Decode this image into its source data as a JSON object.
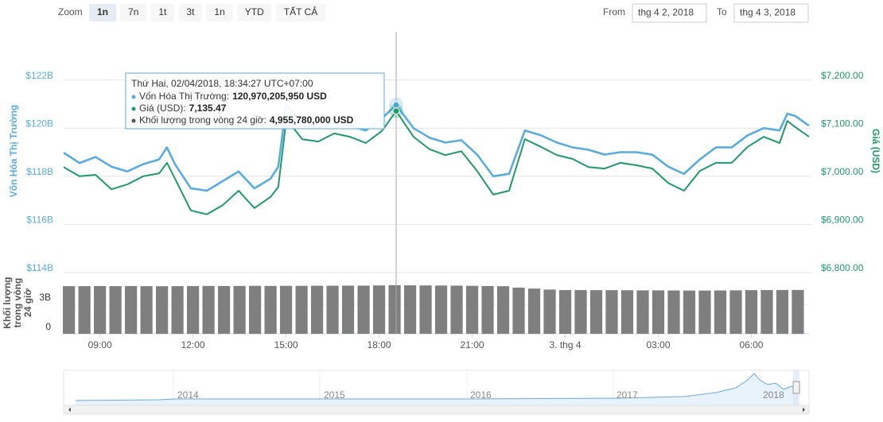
{
  "zoom": {
    "label": "Zoom",
    "buttons": [
      "1n",
      "7n",
      "1t",
      "3t",
      "1n",
      "YTD",
      "TẤT CẢ"
    ],
    "active": 0
  },
  "range": {
    "from_label": "From",
    "from": "thg 4 2, 2018",
    "to_label": "To",
    "to": "thg 4 3, 2018"
  },
  "chart_data": {
    "type": "line",
    "x": [
      7.83,
      8.34,
      8.86,
      9.37,
      9.88,
      10.39,
      10.91,
      11.16,
      11.42,
      11.93,
      12.45,
      12.96,
      13.47,
      13.98,
      14.5,
      14.75,
      15.01,
      15.52,
      16.04,
      16.55,
      17.06,
      17.57,
      18.09,
      18.55,
      19.11,
      19.63,
      20.14,
      20.65,
      21.16,
      21.68,
      22.19,
      22.7,
      23.22,
      23.73,
      24.24,
      24.75,
      25.27,
      25.78,
      26.29,
      26.81,
      27.32,
      27.83,
      28.34,
      28.86,
      29.37,
      29.88,
      30.4,
      30.91,
      31.16,
      31.42,
      31.86
    ],
    "xlim": [
      7.83,
      31.86
    ],
    "xticks": [
      {
        "value": 9,
        "label": "09:00"
      },
      {
        "value": 12,
        "label": "12:00"
      },
      {
        "value": 15,
        "label": "15:00"
      },
      {
        "value": 18,
        "label": "18:00"
      },
      {
        "value": 21,
        "label": "21:00"
      },
      {
        "value": 24,
        "label": "3. thg 4"
      },
      {
        "value": 27,
        "label": "03:00"
      },
      {
        "value": 30,
        "label": "06:00"
      }
    ],
    "ylim": [
      114,
      124
    ],
    "yticks": [
      {
        "value": 114,
        "label": "$114B"
      },
      {
        "value": 116,
        "label": "$116B"
      },
      {
        "value": 118,
        "label": "$118B"
      },
      {
        "value": 120,
        "label": "$120B"
      },
      {
        "value": 122,
        "label": "$122B"
      }
    ],
    "y2lim": [
      6800,
      7300
    ],
    "y2ticks": [
      {
        "value": 6800,
        "label": "$6,800.00"
      },
      {
        "value": 6900,
        "label": "$6,900.00"
      },
      {
        "value": 7000,
        "label": "$7,000.00"
      },
      {
        "value": 7100,
        "label": "$7,100.00"
      },
      {
        "value": 7200,
        "label": "$7,200.00"
      }
    ],
    "ylabel": "Vốn Hóa Thị Trường",
    "y2label": "Giá (USD)",
    "grid": true,
    "series": [
      {
        "color": "#5aacdf",
        "values": [
          118.98,
          118.55,
          118.8,
          118.4,
          118.2,
          118.5,
          118.7,
          119.2,
          118.5,
          117.5,
          117.4,
          117.8,
          118.2,
          117.5,
          117.9,
          118.4,
          121.0,
          120.1,
          120.0,
          120.2,
          120.1,
          119.9,
          120.4,
          120.97,
          120.0,
          119.6,
          119.4,
          119.5,
          118.9,
          118.0,
          118.1,
          119.9,
          119.7,
          119.4,
          119.2,
          119.1,
          118.9,
          119.0,
          119.0,
          118.9,
          118.4,
          118.1,
          118.7,
          119.2,
          119.2,
          119.7,
          120.0,
          119.9,
          120.6,
          120.5,
          120.1
        ]
      },
      {
        "color": "#1f9a68",
        "axis": "y2",
        "values": [
          7019,
          7000,
          7003,
          6973,
          6983,
          7000,
          7006,
          7028,
          6995,
          6929,
          6921,
          6940,
          6970,
          6934,
          6957,
          6978,
          7119,
          7077,
          7072,
          7089,
          7082,
          7069,
          7094,
          7135.47,
          7082,
          7056,
          7044,
          7052,
          7011,
          6962,
          6970,
          7077,
          7061,
          7044,
          7036,
          7019,
          7016,
          7028,
          7023,
          7016,
          6986,
          6970,
          7011,
          7028,
          7028,
          7061,
          7082,
          7069,
          7115,
          7102,
          7082
        ]
      }
    ],
    "volume": {
      "type": "bar",
      "color": "#7f7f7f",
      "x": [
        8,
        8.5,
        9,
        9.5,
        10,
        10.5,
        11,
        11.5,
        12,
        12.5,
        13,
        13.5,
        14,
        14.5,
        15,
        15.5,
        16,
        16.5,
        17,
        17.5,
        18,
        18.5,
        19,
        19.5,
        20,
        20.5,
        21,
        21.5,
        22,
        22.5,
        23,
        23.5,
        24,
        24.5,
        25,
        25.5,
        26,
        26.5,
        27,
        27.5,
        28,
        28.5,
        29,
        29.5,
        30,
        30.5,
        31,
        31.5
      ],
      "values": [
        4.85,
        4.85,
        4.86,
        4.85,
        4.86,
        4.85,
        4.84,
        4.85,
        4.86,
        4.87,
        4.86,
        4.87,
        4.88,
        4.87,
        4.88,
        4.88,
        4.89,
        4.89,
        4.9,
        4.9,
        4.92,
        4.95,
        4.93,
        4.92,
        4.91,
        4.9,
        4.88,
        4.86,
        4.84,
        4.7,
        4.6,
        4.5,
        4.45,
        4.45,
        4.44,
        4.44,
        4.43,
        4.42,
        4.42,
        4.41,
        4.4,
        4.4,
        4.41,
        4.42,
        4.44,
        4.45,
        4.46,
        4.46
      ],
      "ylim": [
        0,
        5.5
      ],
      "yticks": [
        0,
        {
          "value": 3,
          "label": "3B"
        }
      ],
      "ylabel": [
        "Khối lượng",
        "trong vòng",
        "24 giờ"
      ]
    },
    "tooltip_index": 23,
    "tooltip": {
      "title": "Thứ Hai, 02/04/2018, 18:34:27 UTC+07:00",
      "rows": [
        {
          "label": "Vốn Hóa Thị Trường:",
          "value": "120,970,205,950 USD"
        },
        {
          "label": "Giá (USD):",
          "value": "7,135.47"
        },
        {
          "label": "Khối lượng trong vòng 24 giờ:",
          "value": "4,955,780,000 USD"
        }
      ]
    }
  },
  "navigator": {
    "labels": [
      "2014",
      "2015",
      "2016",
      "2017",
      "2018"
    ]
  }
}
